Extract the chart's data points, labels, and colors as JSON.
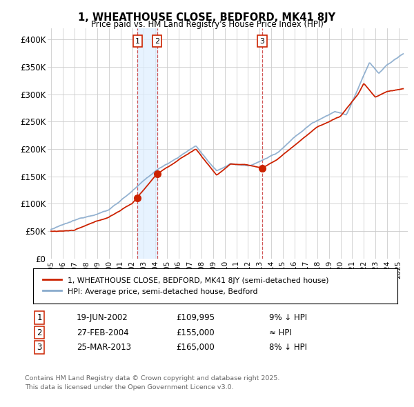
{
  "title": "1, WHEATHOUSE CLOSE, BEDFORD, MK41 8JY",
  "subtitle": "Price paid vs. HM Land Registry's House Price Index (HPI)",
  "legend_line1": "1, WHEATHOUSE CLOSE, BEDFORD, MK41 8JY (semi-detached house)",
  "legend_line2": "HPI: Average price, semi-detached house, Bedford",
  "footnote1": "Contains HM Land Registry data © Crown copyright and database right 2025.",
  "footnote2": "This data is licensed under the Open Government Licence v3.0.",
  "ylim": [
    0,
    420000
  ],
  "yticks": [
    0,
    50000,
    100000,
    150000,
    200000,
    250000,
    300000,
    350000,
    400000
  ],
  "ytick_labels": [
    "£0",
    "£50K",
    "£100K",
    "£150K",
    "£200K",
    "£250K",
    "£300K",
    "£350K",
    "£400K"
  ],
  "plot_bg_color": "#ffffff",
  "fig_bg_color": "#ffffff",
  "grid_color": "#cccccc",
  "line_color_red": "#cc2200",
  "line_color_blue": "#88aacc",
  "vline_color": "#cc4444",
  "shade_color": "#ddeeff",
  "sale_points": [
    {
      "label": "1",
      "date_x": 2002.46,
      "price": 109995
    },
    {
      "label": "2",
      "date_x": 2004.15,
      "price": 155000
    },
    {
      "label": "3",
      "date_x": 2013.23,
      "price": 165000
    }
  ],
  "sale_annotations": [
    {
      "label": "1",
      "date": "19-JUN-2002",
      "price": "£109,995",
      "note": "9% ↓ HPI"
    },
    {
      "label": "2",
      "date": "27-FEB-2004",
      "price": "£155,000",
      "note": "≈ HPI"
    },
    {
      "label": "3",
      "date": "25-MAR-2013",
      "price": "£165,000",
      "note": "8% ↓ HPI"
    }
  ],
  "xlim": [
    1994.7,
    2025.8
  ],
  "xticks": [
    1995,
    1996,
    1997,
    1998,
    1999,
    2000,
    2001,
    2002,
    2003,
    2004,
    2005,
    2006,
    2007,
    2008,
    2009,
    2010,
    2011,
    2012,
    2013,
    2014,
    2015,
    2016,
    2017,
    2018,
    2019,
    2020,
    2021,
    2022,
    2023,
    2024,
    2025
  ]
}
